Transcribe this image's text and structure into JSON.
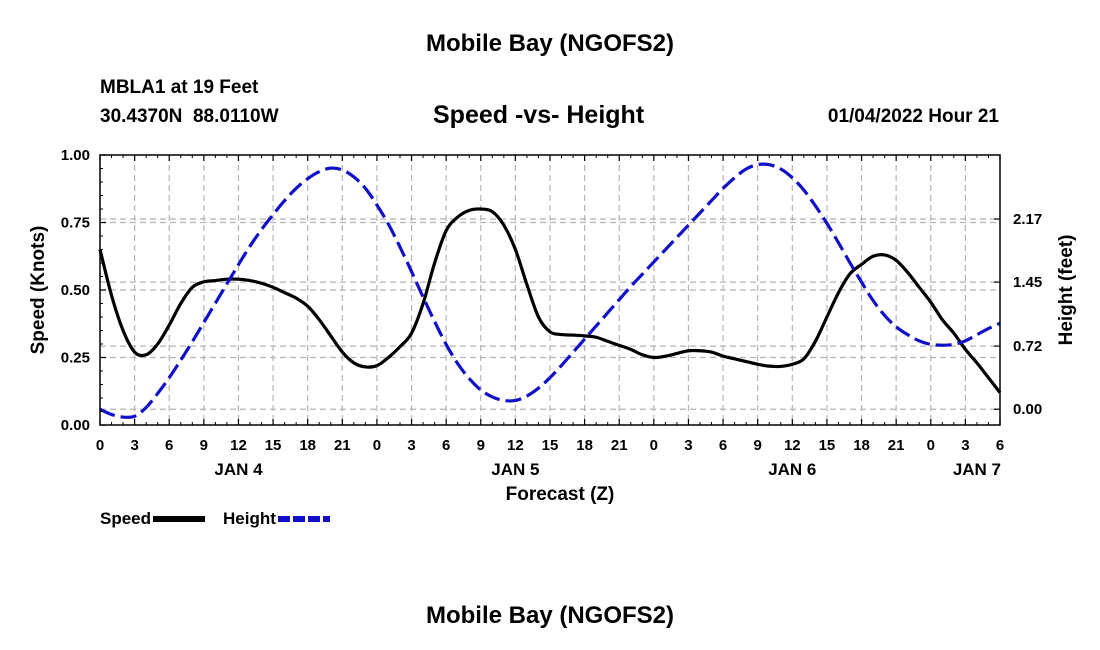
{
  "page_title": "Mobile Bay (NGOFS2)",
  "footer_title": "Mobile Bay (NGOFS2)",
  "station": {
    "name_line": "MBLA1 at 19 Feet",
    "coords_line": "30.4370N  88.0110W"
  },
  "timestamp": "01/04/2022 Hour 21",
  "colors": {
    "speed": "#000000",
    "height": "#1010c8",
    "grid": "#b4b4b4"
  },
  "chart_data": {
    "type": "line",
    "title": "Speed -vs- Height",
    "xlabel": "Forecast (Z)",
    "ylabel": "Speed (Knots)",
    "ylabel_right": "Height (feet)",
    "x_unit": "hours since 2022-01-04 00Z",
    "xlim": [
      0,
      78
    ],
    "ylim": [
      0,
      1.0
    ],
    "ylim_right": [
      -0.18,
      2.9
    ],
    "x_ticks": [
      0,
      3,
      6,
      9,
      12,
      15,
      18,
      21,
      24,
      27,
      30,
      33,
      36,
      39,
      42,
      45,
      48,
      51,
      54,
      57,
      60,
      63,
      66,
      69,
      72,
      75,
      78
    ],
    "x_tick_labels": [
      "0",
      "3",
      "6",
      "9",
      "12",
      "15",
      "18",
      "21",
      "0",
      "3",
      "6",
      "9",
      "12",
      "15",
      "18",
      "21",
      "0",
      "3",
      "6",
      "9",
      "12",
      "15",
      "18",
      "21",
      "0",
      "3",
      "6"
    ],
    "day_labels": [
      {
        "x": 12,
        "label": "JAN 4"
      },
      {
        "x": 36,
        "label": "JAN 5"
      },
      {
        "x": 60,
        "label": "JAN 6"
      },
      {
        "x": 76,
        "label": "JAN 7"
      }
    ],
    "y_ticks": [
      0,
      0.25,
      0.5,
      0.75,
      1.0
    ],
    "y_tick_labels": [
      "0.00",
      "0.25",
      "0.50",
      "0.75",
      "1.00"
    ],
    "y_ticks_right": [
      0.0,
      0.72,
      1.45,
      2.17
    ],
    "y_tick_labels_right": [
      "0.00",
      "0.72",
      "1.45",
      "2.17"
    ],
    "grid": true,
    "legend": [
      {
        "name": "Speed",
        "style": "solid",
        "color": "#000000"
      },
      {
        "name": "Height",
        "style": "dashed",
        "color": "#1010c8"
      }
    ],
    "series": [
      {
        "name": "Speed",
        "axis": "left",
        "style": "solid",
        "x": [
          0,
          1,
          2,
          3,
          4,
          5,
          6,
          7,
          8,
          9,
          10,
          11,
          12,
          13,
          14,
          15,
          16,
          17,
          18,
          19,
          20,
          21,
          22,
          23,
          24,
          25,
          26,
          27,
          28,
          29,
          30,
          31,
          32,
          33,
          34,
          35,
          36,
          37,
          38,
          39,
          40,
          41,
          42,
          43,
          44,
          45,
          46,
          47,
          48,
          49,
          50,
          51,
          52,
          53,
          54,
          55,
          56,
          57,
          58,
          59,
          60,
          61,
          62,
          63,
          64,
          65,
          66,
          67,
          68,
          69,
          70,
          71,
          72,
          73,
          74,
          75,
          76,
          77,
          78
        ],
        "values": [
          0.65,
          0.48,
          0.35,
          0.27,
          0.26,
          0.3,
          0.37,
          0.45,
          0.51,
          0.53,
          0.535,
          0.54,
          0.54,
          0.535,
          0.525,
          0.51,
          0.49,
          0.47,
          0.44,
          0.39,
          0.33,
          0.27,
          0.23,
          0.215,
          0.22,
          0.25,
          0.29,
          0.34,
          0.45,
          0.6,
          0.72,
          0.77,
          0.795,
          0.8,
          0.79,
          0.74,
          0.65,
          0.52,
          0.4,
          0.345,
          0.335,
          0.333,
          0.33,
          0.325,
          0.31,
          0.295,
          0.28,
          0.26,
          0.25,
          0.255,
          0.265,
          0.275,
          0.275,
          0.27,
          0.255,
          0.245,
          0.235,
          0.225,
          0.218,
          0.217,
          0.225,
          0.245,
          0.31,
          0.4,
          0.49,
          0.56,
          0.595,
          0.625,
          0.63,
          0.61,
          0.565,
          0.51,
          0.455,
          0.39,
          0.34,
          0.28,
          0.23,
          0.175,
          0.12
        ]
      },
      {
        "name": "Height",
        "axis": "right",
        "style": "dashed",
        "x": [
          0,
          1,
          2,
          3,
          4,
          5,
          6,
          7,
          8,
          9,
          10,
          11,
          12,
          13,
          14,
          15,
          16,
          17,
          18,
          19,
          20,
          21,
          22,
          23,
          24,
          25,
          26,
          27,
          28,
          29,
          30,
          31,
          32,
          33,
          34,
          35,
          36,
          37,
          38,
          39,
          40,
          41,
          42,
          43,
          44,
          45,
          46,
          47,
          48,
          49,
          50,
          51,
          52,
          53,
          54,
          55,
          56,
          57,
          58,
          59,
          60,
          61,
          62,
          63,
          64,
          65,
          66,
          67,
          68,
          69,
          70,
          71,
          72,
          73,
          74,
          75,
          76,
          77,
          78
        ],
        "values": [
          0.0,
          -0.06,
          -0.09,
          -0.08,
          0.02,
          0.18,
          0.36,
          0.56,
          0.77,
          0.99,
          1.21,
          1.43,
          1.65,
          1.86,
          2.05,
          2.22,
          2.38,
          2.52,
          2.63,
          2.71,
          2.75,
          2.73,
          2.65,
          2.52,
          2.33,
          2.11,
          1.85,
          1.57,
          1.28,
          1.0,
          0.74,
          0.52,
          0.35,
          0.22,
          0.14,
          0.1,
          0.1,
          0.15,
          0.24,
          0.36,
          0.5,
          0.65,
          0.8,
          0.95,
          1.1,
          1.25,
          1.4,
          1.54,
          1.68,
          1.82,
          1.96,
          2.1,
          2.24,
          2.38,
          2.52,
          2.64,
          2.74,
          2.79,
          2.79,
          2.74,
          2.64,
          2.5,
          2.32,
          2.12,
          1.9,
          1.67,
          1.45,
          1.24,
          1.07,
          0.94,
          0.85,
          0.78,
          0.74,
          0.73,
          0.74,
          0.78,
          0.85,
          0.92,
          0.98
        ]
      }
    ]
  }
}
